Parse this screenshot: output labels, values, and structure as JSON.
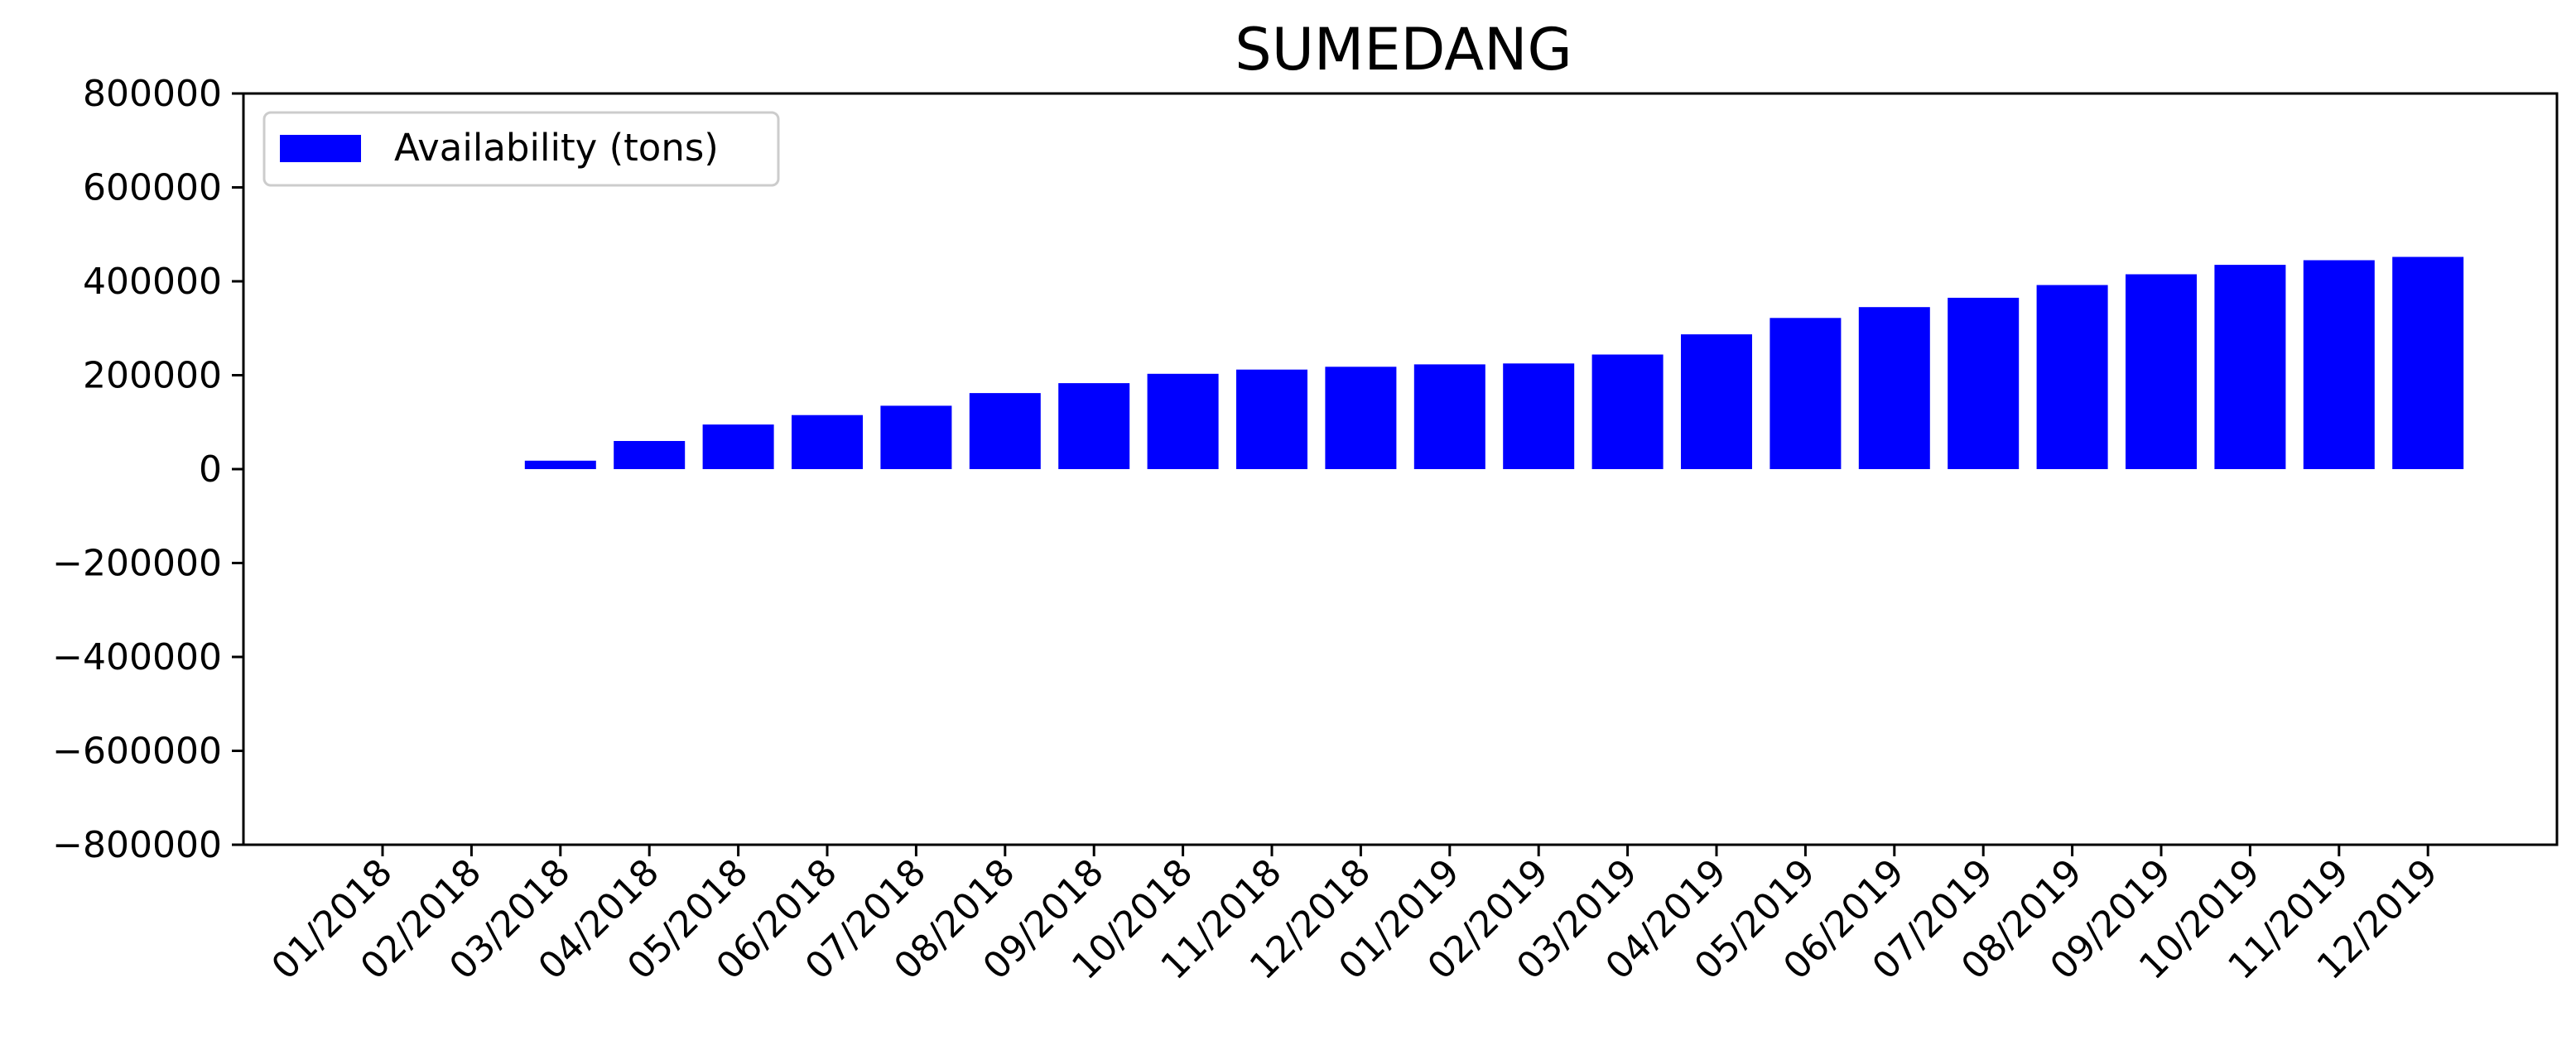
{
  "chart_data": {
    "type": "bar",
    "title": "SUMEDANG",
    "xlabel": "",
    "ylabel": "",
    "categories": [
      "01/2018",
      "02/2018",
      "03/2018",
      "04/2018",
      "05/2018",
      "06/2018",
      "07/2018",
      "08/2018",
      "09/2018",
      "10/2018",
      "11/2018",
      "12/2018",
      "01/2019",
      "02/2019",
      "03/2019",
      "04/2019",
      "05/2019",
      "06/2019",
      "07/2019",
      "08/2019",
      "09/2019",
      "10/2019",
      "11/2019",
      "12/2019"
    ],
    "series": [
      {
        "name": "Availability (tons)",
        "color": "#0000ff",
        "values": [
          0,
          0,
          18000,
          60000,
          95000,
          115000,
          135000,
          162000,
          183000,
          203000,
          212000,
          218000,
          223000,
          225000,
          244000,
          287000,
          322000,
          345000,
          365000,
          392000,
          415000,
          435000,
          445000,
          452000
        ]
      }
    ],
    "ylim": [
      -800000,
      800000
    ],
    "yticks": [
      800000,
      600000,
      400000,
      200000,
      0,
      -200000,
      -400000,
      -600000,
      -800000
    ],
    "ytick_labels": [
      "800000",
      "600000",
      "400000",
      "200000",
      "0",
      "−200000",
      "−400000",
      "−600000",
      "−800000"
    ],
    "grid": false,
    "legend_position": "upper-left",
    "xtick_rotation": "45"
  }
}
